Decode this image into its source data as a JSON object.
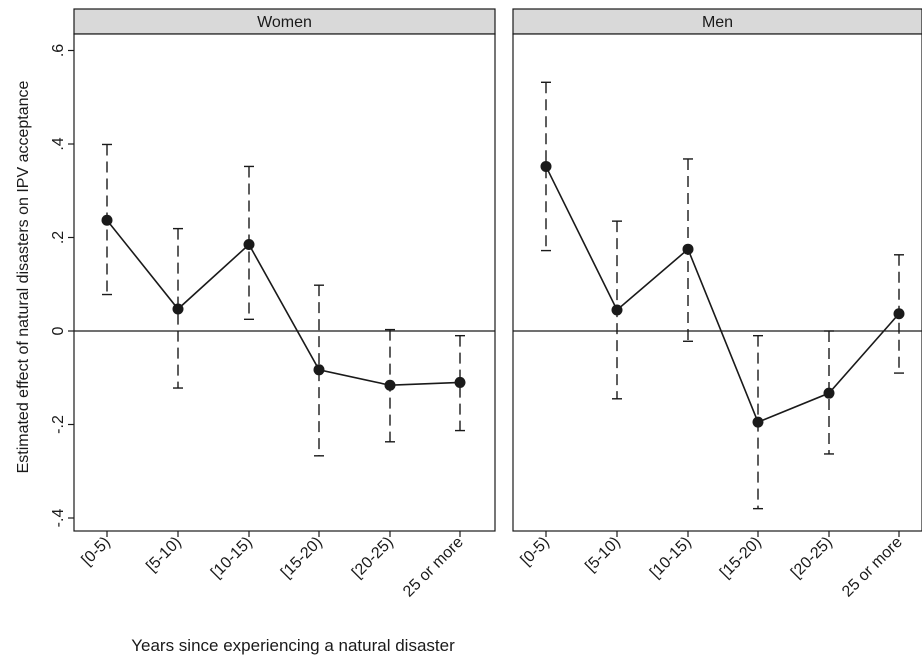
{
  "figure": {
    "ylabel": "Estimated effect of natural disasters on IPV acceptance",
    "xlabel": "Years since experiencing a natural disaster"
  },
  "chart_data": [
    {
      "type": "line",
      "panel_title": "Women",
      "categories": [
        "[0-5)",
        "[5-10)",
        "[10-15)",
        "[15-20)",
        "[20-25)",
        "25 or more"
      ],
      "series": [
        {
          "values": [
            0.237,
            0.047,
            0.185,
            -0.083,
            -0.116,
            -0.11
          ],
          "ci_low": [
            0.078,
            -0.122,
            0.025,
            -0.267,
            -0.237,
            -0.213
          ],
          "ci_high": [
            0.399,
            0.219,
            0.352,
            0.098,
            0.003,
            -0.01
          ]
        }
      ],
      "ylim": [
        -0.4,
        0.6
      ],
      "yticks": [
        -0.4,
        -0.2,
        0,
        0.2,
        0.4,
        0.6
      ],
      "ytick_labels": [
        "-.4",
        "-.2",
        "0",
        ".2",
        ".4",
        ".6"
      ],
      "reference_line": 0,
      "line_color": "#1a1a1a",
      "panel_header_color": "#d9d9d9",
      "grid": false
    },
    {
      "type": "line",
      "panel_title": "Men",
      "categories": [
        "[0-5)",
        "[5-10)",
        "[10-15)",
        "[15-20)",
        "[20-25)",
        "25 or more"
      ],
      "series": [
        {
          "values": [
            0.352,
            0.045,
            0.175,
            -0.195,
            -0.133,
            0.037
          ],
          "ci_low": [
            0.172,
            -0.145,
            -0.022,
            -0.38,
            -0.263,
            -0.09
          ],
          "ci_high": [
            0.532,
            0.235,
            0.368,
            -0.01,
            0.0,
            0.163
          ]
        }
      ],
      "ylim": [
        -0.4,
        0.6
      ],
      "reference_line": 0,
      "line_color": "#1a1a1a",
      "panel_header_color": "#d9d9d9",
      "grid": false
    }
  ]
}
